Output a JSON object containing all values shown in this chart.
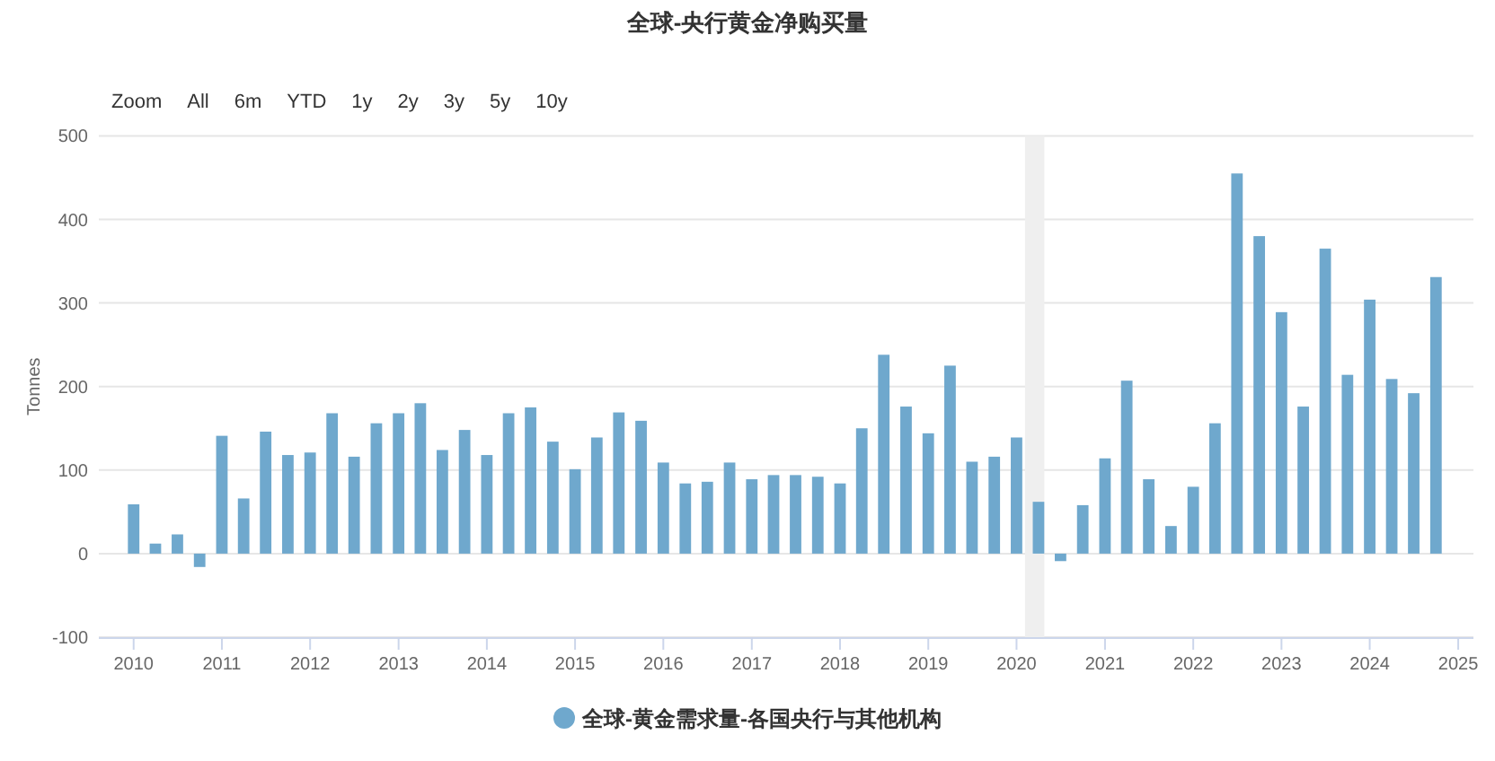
{
  "chart_data": {
    "type": "bar",
    "title": "全球-央行黄金净购买量",
    "ylabel": "Tonnes",
    "annotations": [
      "Zoom",
      "All",
      "6m",
      "YTD",
      "1y",
      "2y",
      "3y",
      "5y",
      "10y"
    ],
    "x": [
      "2010-01",
      "2010-04",
      "2010-07",
      "2010-10",
      "2011-01",
      "2011-04",
      "2011-07",
      "2011-10",
      "2012-01",
      "2012-04",
      "2012-07",
      "2012-10",
      "2013-01",
      "2013-04",
      "2013-07",
      "2013-10",
      "2014-01",
      "2014-04",
      "2014-07",
      "2014-10",
      "2015-01",
      "2015-04",
      "2015-07",
      "2015-10",
      "2016-01",
      "2016-04",
      "2016-07",
      "2016-10",
      "2017-01",
      "2017-04",
      "2017-07",
      "2017-10",
      "2018-01",
      "2018-04",
      "2018-07",
      "2018-10",
      "2019-01",
      "2019-04",
      "2019-07",
      "2019-10",
      "2020-01",
      "2020-04",
      "2020-07",
      "2020-10",
      "2021-01",
      "2021-04",
      "2021-07",
      "2021-10",
      "2022-01",
      "2022-04",
      "2022-07",
      "2022-10",
      "2023-01",
      "2023-04",
      "2023-07",
      "2023-10",
      "2024-01",
      "2024-04",
      "2024-07",
      "2024-10"
    ],
    "series": [
      {
        "name": "全球-黄金需求量-各国央行与其他机构",
        "color": "#6fa8cd",
        "values": [
          59,
          12,
          23,
          -16,
          141,
          66,
          146,
          118,
          121,
          168,
          116,
          156,
          168,
          180,
          124,
          148,
          118,
          168,
          175,
          134,
          101,
          139,
          169,
          159,
          109,
          84,
          86,
          109,
          89,
          94,
          94,
          92,
          84,
          150,
          238,
          176,
          144,
          225,
          110,
          116,
          139,
          62,
          -9,
          58,
          114,
          207,
          89,
          33,
          80,
          156,
          455,
          380,
          289,
          176,
          365,
          214,
          304,
          209,
          192,
          331
        ]
      }
    ],
    "xlim": [
      "2009-08-10",
      "2025-03-05"
    ],
    "xticks": [
      "2010",
      "2011",
      "2012",
      "2013",
      "2014",
      "2015",
      "2016",
      "2017",
      "2018",
      "2019",
      "2020",
      "2021",
      "2022",
      "2023",
      "2024",
      "2025"
    ],
    "ylim": [
      -100,
      500
    ],
    "yticks": [
      -100,
      0,
      100,
      200,
      300,
      400,
      500
    ],
    "grid": "y",
    "legend": "bottom",
    "bands": [
      {
        "axis": "x",
        "from": "2020-02-05",
        "to": "2020-04-25",
        "color": "#efefef"
      }
    ]
  }
}
